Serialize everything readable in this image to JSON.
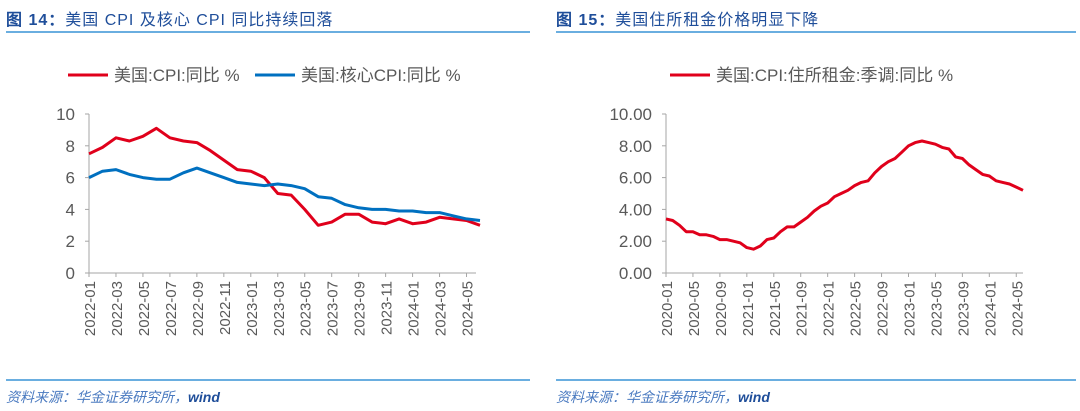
{
  "left": {
    "title_prefix": "图 14：",
    "title": "美国 CPI 及核心 CPI 同比持续回落",
    "source": "资料来源：华金证券研究所，",
    "source_brand": "wind"
  },
  "right": {
    "title_prefix": "图 15：",
    "title": "美国住所租金价格明显下降",
    "source": "资料来源：华金证券研究所，",
    "source_brand": "wind"
  },
  "chart_data": [
    {
      "type": "line",
      "x_start": "2022-01",
      "x_tick_labels": [
        "2022-01",
        "2022-03",
        "2022-05",
        "2022-07",
        "2022-09",
        "2022-11",
        "2023-01",
        "2023-03",
        "2023-05",
        "2023-07",
        "2023-09",
        "2023-11",
        "2024-01",
        "2024-03",
        "2024-05"
      ],
      "ylim": [
        0,
        10
      ],
      "y_ticks": [
        "0",
        "2",
        "4",
        "6",
        "8",
        "10"
      ],
      "legend_position": "top",
      "grid": false,
      "series": [
        {
          "name": "美国:CPI:同比 %",
          "color": "#e0001b",
          "values": [
            7.5,
            7.9,
            8.5,
            8.3,
            8.6,
            9.1,
            8.5,
            8.3,
            8.2,
            7.7,
            7.1,
            6.5,
            6.4,
            6.0,
            5.0,
            4.9,
            4.0,
            3.0,
            3.2,
            3.7,
            3.7,
            3.2,
            3.1,
            3.4,
            3.1,
            3.2,
            3.5,
            3.4,
            3.3,
            3.0
          ]
        },
        {
          "name": "美国:核心CPI:同比 %",
          "color": "#0070c0",
          "values": [
            6.0,
            6.4,
            6.5,
            6.2,
            6.0,
            5.9,
            5.9,
            6.3,
            6.6,
            6.3,
            6.0,
            5.7,
            5.6,
            5.5,
            5.6,
            5.5,
            5.3,
            4.8,
            4.7,
            4.3,
            4.1,
            4.0,
            4.0,
            3.9,
            3.9,
            3.8,
            3.8,
            3.6,
            3.4,
            3.3
          ]
        }
      ]
    },
    {
      "type": "line",
      "x_start": "2020-01",
      "x_tick_labels": [
        "2020-01",
        "2020-05",
        "2020-09",
        "2021-01",
        "2021-05",
        "2021-09",
        "2022-01",
        "2022-05",
        "2022-09",
        "2023-01",
        "2023-05",
        "2023-09",
        "2024-01",
        "2024-05"
      ],
      "ylim": [
        0,
        10
      ],
      "y_ticks": [
        "0.00",
        "2.00",
        "4.00",
        "6.00",
        "8.00",
        "10.00"
      ],
      "legend_position": "top",
      "grid": false,
      "series": [
        {
          "name": "美国:CPI:住所租金:季调:同比 %",
          "color": "#e0001b",
          "values": [
            3.4,
            3.3,
            3.0,
            2.6,
            2.6,
            2.4,
            2.4,
            2.3,
            2.1,
            2.1,
            2.0,
            1.9,
            1.6,
            1.5,
            1.7,
            2.1,
            2.2,
            2.6,
            2.9,
            2.9,
            3.2,
            3.5,
            3.9,
            4.2,
            4.4,
            4.8,
            5.0,
            5.2,
            5.5,
            5.7,
            5.8,
            6.3,
            6.7,
            7.0,
            7.2,
            7.6,
            8.0,
            8.2,
            8.3,
            8.2,
            8.1,
            7.9,
            7.8,
            7.3,
            7.2,
            6.8,
            6.5,
            6.2,
            6.1,
            5.8,
            5.7,
            5.6,
            5.4,
            5.2
          ]
        }
      ]
    }
  ]
}
